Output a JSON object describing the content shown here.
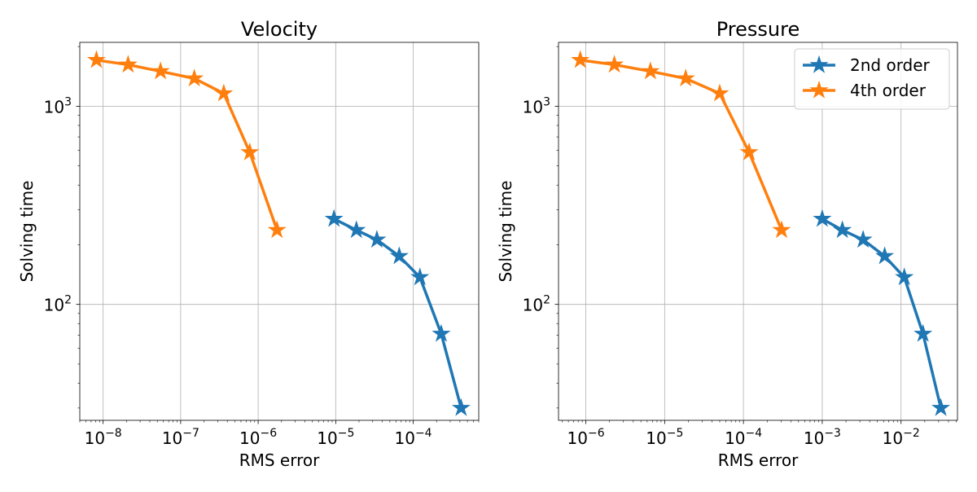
{
  "chart_data": [
    {
      "type": "line",
      "title": "Velocity",
      "xlabel": "RMS error",
      "ylabel": "Solving time",
      "xscale": "log",
      "yscale": "log",
      "xlim": [
        5e-09,
        0.0007
      ],
      "ylim": [
        26,
        2100
      ],
      "grid": true,
      "x_ticks": [
        {
          "value": 1e-08,
          "mantissa": "10",
          "exp": "−8"
        },
        {
          "value": 1e-07,
          "mantissa": "10",
          "exp": "−7"
        },
        {
          "value": 1e-06,
          "mantissa": "10",
          "exp": "−6"
        },
        {
          "value": 1e-05,
          "mantissa": "10",
          "exp": "−5"
        },
        {
          "value": 0.0001,
          "mantissa": "10",
          "exp": "−4"
        }
      ],
      "y_ticks": [
        {
          "value": 100,
          "mantissa": "10",
          "exp": "2"
        },
        {
          "value": 1000,
          "mantissa": "10",
          "exp": "3"
        }
      ],
      "series": [
        {
          "name": "2nd order",
          "color": "#1f77b4",
          "x": [
            9.5e-06,
            1.85e-05,
            3.4e-05,
            6.6e-05,
            0.000122,
            0.00023,
            0.000415
          ],
          "y": [
            270,
            237,
            212,
            175,
            137,
            71,
            30
          ]
        },
        {
          "name": "4th order",
          "color": "#ff7f0e",
          "x": [
            8.2e-09,
            2.1e-08,
            5.5e-08,
            1.5e-07,
            3.6e-07,
            7.8e-07,
            1.75e-06
          ],
          "y": [
            1710,
            1620,
            1500,
            1380,
            1160,
            585,
            237
          ]
        }
      ]
    },
    {
      "type": "line",
      "title": "Pressure",
      "xlabel": "RMS error",
      "ylabel": "Solving time",
      "xscale": "log",
      "yscale": "log",
      "xlim": [
        4.5e-07,
        0.052
      ],
      "ylim": [
        26,
        2100
      ],
      "grid": true,
      "legend": "top-right",
      "x_ticks": [
        {
          "value": 1e-06,
          "mantissa": "10",
          "exp": "−6"
        },
        {
          "value": 1e-05,
          "mantissa": "10",
          "exp": "−5"
        },
        {
          "value": 0.0001,
          "mantissa": "10",
          "exp": "−4"
        },
        {
          "value": 0.001,
          "mantissa": "10",
          "exp": "−3"
        },
        {
          "value": 0.01,
          "mantissa": "10",
          "exp": "−2"
        }
      ],
      "y_ticks": [
        {
          "value": 100,
          "mantissa": "10",
          "exp": "2"
        },
        {
          "value": 1000,
          "mantissa": "10",
          "exp": "3"
        }
      ],
      "series": [
        {
          "name": "2nd order",
          "color": "#1f77b4",
          "x": [
            0.001,
            0.0018,
            0.0033,
            0.0062,
            0.011,
            0.019,
            0.032
          ],
          "y": [
            270,
            237,
            212,
            175,
            137,
            71,
            30
          ]
        },
        {
          "name": "4th order",
          "color": "#ff7f0e",
          "x": [
            8.5e-07,
            2.3e-06,
            6.6e-06,
            1.85e-05,
            5e-05,
            0.000118,
            0.000305
          ],
          "y": [
            1710,
            1620,
            1500,
            1380,
            1160,
            585,
            237
          ]
        }
      ]
    }
  ]
}
